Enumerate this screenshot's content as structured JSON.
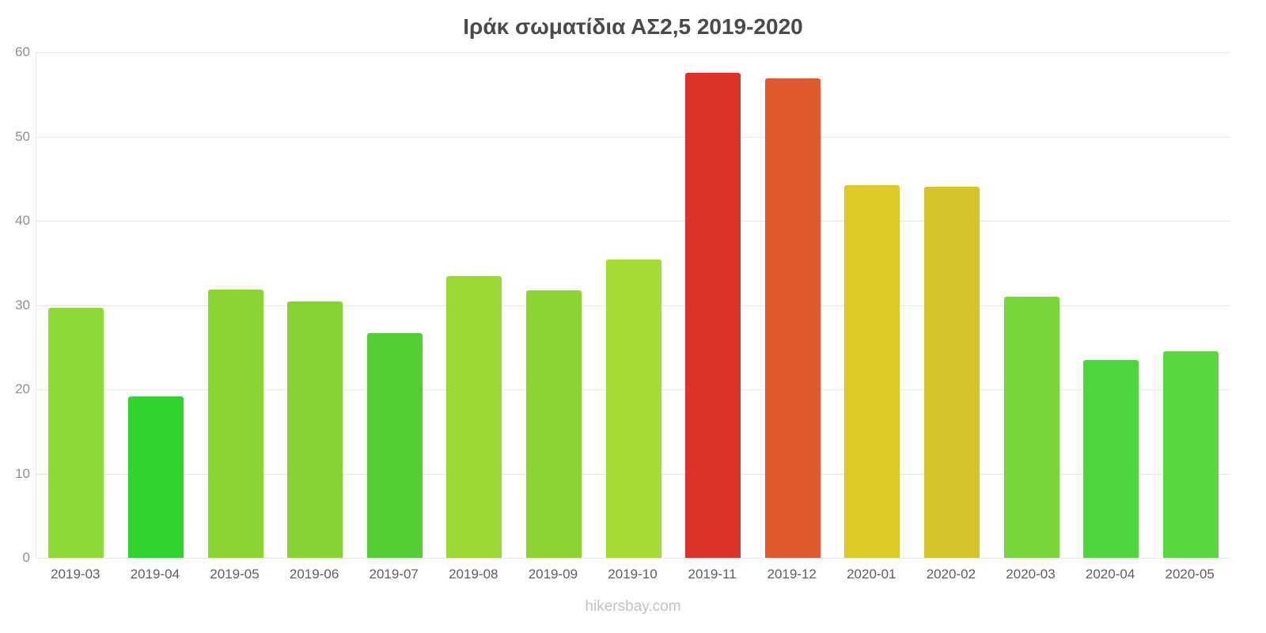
{
  "footer": "hikersbay.com",
  "chart_data": {
    "type": "bar",
    "title": "Ιράκ σωματίδια ΑΣ2,5 2019-2020",
    "categories": [
      "2019-03",
      "2019-04",
      "2019-05",
      "2019-06",
      "2019-07",
      "2019-08",
      "2019-09",
      "2019-10",
      "2019-11",
      "2019-12",
      "2020-01",
      "2020-02",
      "2020-03",
      "2020-04",
      "2020-05"
    ],
    "values": [
      29.7,
      19.2,
      31.8,
      30.4,
      26.7,
      33.4,
      31.7,
      35.4,
      57.6,
      56.9,
      44.2,
      44.0,
      31.0,
      23.5,
      24.5
    ],
    "bar_colors": [
      "#8CD835",
      "#2FD42F",
      "#8AD534",
      "#84D234",
      "#52CE33",
      "#9BD934",
      "#8CD434",
      "#A6DA35",
      "#DD3227",
      "#E15A2E",
      "#DDC928",
      "#D7C32B",
      "#77D63A",
      "#4CD63B",
      "#5BD73E"
    ],
    "xlabel": "",
    "ylabel": "",
    "ylim": [
      0,
      60
    ],
    "yticks": [
      0,
      10,
      20,
      30,
      40,
      50,
      60
    ],
    "grid": true,
    "legend_position": "none"
  }
}
